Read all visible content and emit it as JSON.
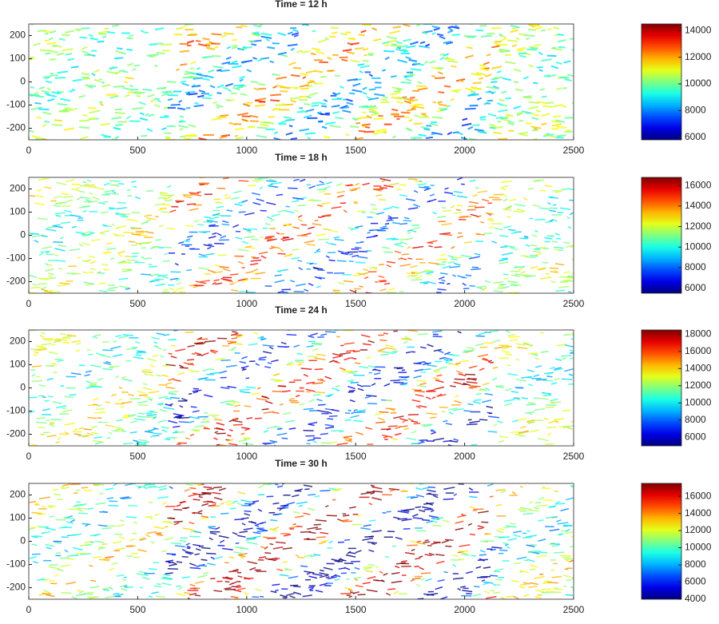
{
  "chart_data": [
    {
      "type": "contour",
      "title": "Time = 12 h",
      "colormap": "jet",
      "xlim": [
        0,
        2500
      ],
      "xticks": [
        0,
        500,
        1000,
        1500,
        2000,
        2500
      ],
      "ylim": [
        -250,
        250
      ],
      "yticks": [
        -200,
        -100,
        0,
        100,
        200
      ],
      "clim": [
        5800,
        14500
      ],
      "cticks": [
        6000,
        8000,
        10000,
        12000,
        14000
      ]
    },
    {
      "type": "contour",
      "title": "Time = 18 h",
      "colormap": "jet",
      "xlim": [
        0,
        2500
      ],
      "xticks": [
        0,
        500,
        1000,
        1500,
        2000,
        2500
      ],
      "ylim": [
        -250,
        250
      ],
      "yticks": [
        -200,
        -100,
        0,
        100,
        200
      ],
      "clim": [
        5500,
        16800
      ],
      "cticks": [
        6000,
        8000,
        10000,
        12000,
        14000,
        16000
      ]
    },
    {
      "type": "contour",
      "title": "Time = 24 h",
      "colormap": "jet",
      "xlim": [
        0,
        2500
      ],
      "xticks": [
        0,
        500,
        1000,
        1500,
        2000,
        2500
      ],
      "ylim": [
        -250,
        250
      ],
      "yticks": [
        -200,
        -100,
        0,
        100,
        200
      ],
      "clim": [
        5000,
        18500
      ],
      "cticks": [
        6000,
        8000,
        10000,
        12000,
        14000,
        16000,
        18000
      ]
    },
    {
      "type": "contour",
      "title": "Time = 30 h",
      "colormap": "jet",
      "xlim": [
        0,
        2500
      ],
      "xticks": [
        0,
        500,
        1000,
        1500,
        2000,
        2500
      ],
      "ylim": [
        -250,
        250
      ],
      "yticks": [
        -200,
        -100,
        0,
        100,
        200
      ],
      "clim": [
        4000,
        17500
      ],
      "cticks": [
        4000,
        6000,
        8000,
        10000,
        12000,
        14000,
        16000
      ]
    }
  ]
}
